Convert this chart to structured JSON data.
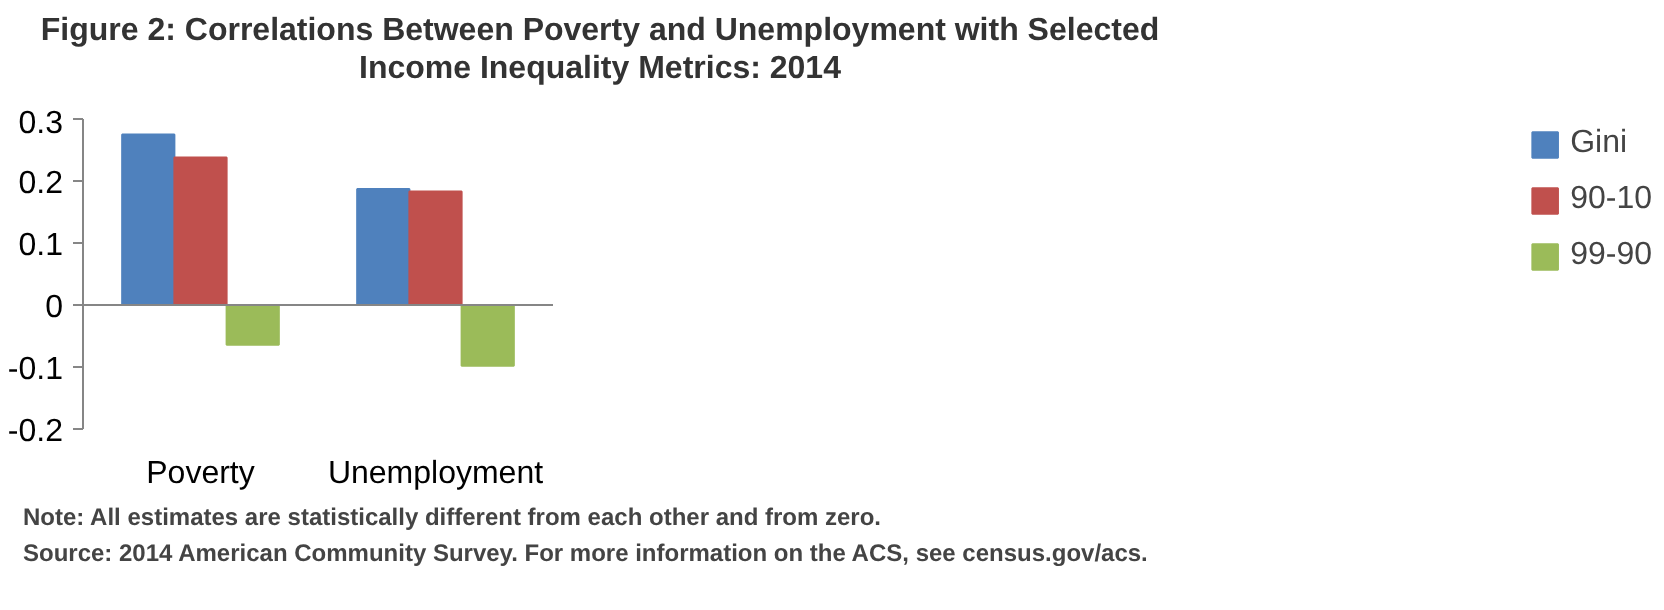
{
  "chart_data": {
    "type": "bar",
    "title": "Figure 2: Correlations Between Poverty and Unemployment with Selected Income Inequality Metrics: 2014",
    "categories": [
      "Poverty",
      "Unemployment"
    ],
    "series": [
      {
        "name": "Gini",
        "color": "#4f81bd",
        "values": [
          0.275,
          0.187
        ]
      },
      {
        "name": "90-10",
        "color": "#c0504d",
        "values": [
          0.238,
          0.183
        ]
      },
      {
        "name": "99-90",
        "color": "#9bbb59",
        "values": [
          -0.064,
          -0.098
        ]
      }
    ],
    "ylim": [
      -0.2,
      0.3
    ],
    "yticks": [
      -0.2,
      -0.1,
      0,
      0.1,
      0.2,
      0.3
    ],
    "legend": "right",
    "annotations": [
      "Note: All estimates are statistically different from each other and from zero.",
      "Source: 2014 American Community Survey.  For more information on the ACS, see census.gov/acs."
    ]
  }
}
